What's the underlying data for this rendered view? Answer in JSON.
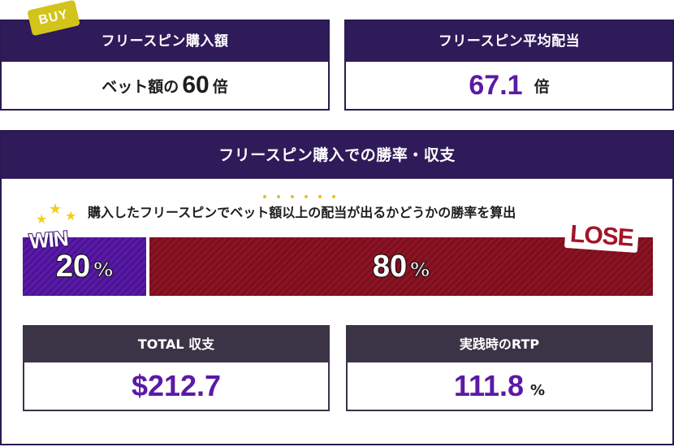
{
  "buy_card": {
    "tag": "BUY",
    "title": "フリースピン購入額",
    "prefix": "ベット額の",
    "value": "60",
    "unit": "倍"
  },
  "avg_card": {
    "title": "フリースピン平均配当",
    "value": "67.1",
    "unit": "倍"
  },
  "section": {
    "title": "フリースピン購入での勝率・収支",
    "caption": "購入したフリースピンでベット額以上の配当が出るかどうかの勝率を算出",
    "win": {
      "label": "WIN",
      "percent": 20,
      "value": "20",
      "unit": "%"
    },
    "lose": {
      "label": "LOSE",
      "percent": 80,
      "value": "80",
      "unit": "%"
    },
    "total": {
      "title": "TOTAL 収支",
      "value": "$212.7"
    },
    "rtp": {
      "title": "実践時のRTP",
      "value": "111.8",
      "unit": "%"
    }
  },
  "colors": {
    "header": "#2f1a5a",
    "accent_purple": "#5a1aa6",
    "lose_red": "#8c1424",
    "buy_tag": "#d2c41a",
    "star": "#f0cf1d"
  },
  "icons": [
    "star-icon"
  ]
}
